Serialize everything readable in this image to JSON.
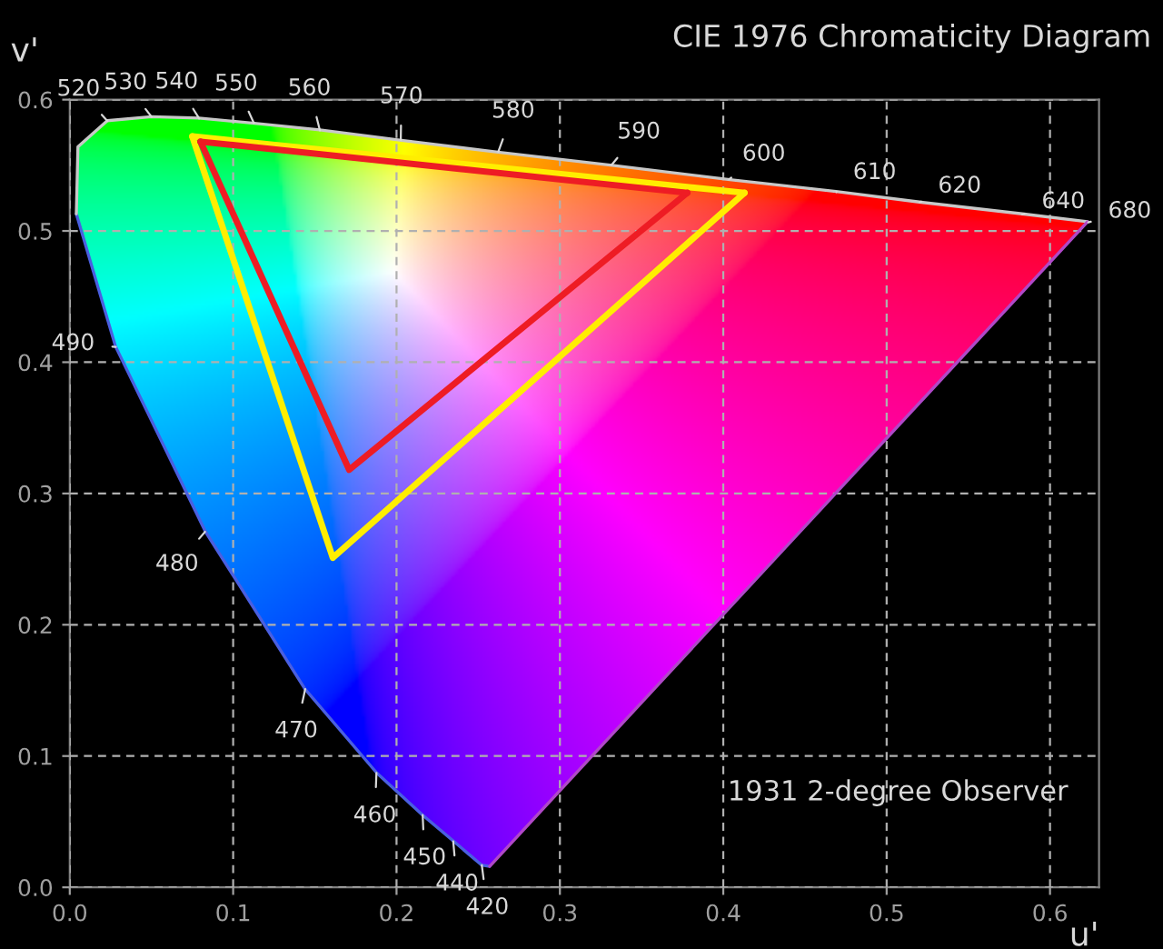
{
  "chart_data": {
    "type": "line",
    "title": "CIE 1976 Chromaticity Diagram",
    "xlabel": "u'",
    "ylabel": "v'",
    "xlim": [
      0,
      0.63
    ],
    "ylim": [
      0,
      0.6
    ],
    "xticks": [
      {
        "value": 0,
        "label": "0.0"
      },
      0.1,
      0.2,
      0.3,
      0.4,
      0.5,
      0.6
    ],
    "yticks": [
      {
        "value": 0,
        "label": "0.0"
      },
      0.1,
      0.2,
      0.3,
      0.4,
      0.5,
      0.6
    ],
    "grid": true,
    "legend": false,
    "line_style": "solid",
    "marker": "none",
    "series": [
      {
        "color": "#4a5fe0",
        "x": [
          0.004,
          0.028,
          0.083,
          0.144,
          0.188,
          0.216,
          0.235,
          0.252,
          0.257
        ],
        "values": [
          0.513,
          0.412,
          0.271,
          0.151,
          0.087,
          0.055,
          0.035,
          0.017,
          0.016
        ]
      },
      {
        "color": "#c8c8c8",
        "x": [
          0.004,
          0.005,
          0.023,
          0.05,
          0.079,
          0.113,
          0.153,
          0.203,
          0.262,
          0.332,
          0.404,
          0.469,
          0.52,
          0.583,
          0.623
        ],
        "values": [
          0.513,
          0.564,
          0.584,
          0.587,
          0.586,
          0.582,
          0.577,
          0.569,
          0.56,
          0.55,
          0.539,
          0.53,
          0.522,
          0.513,
          0.507
        ]
      },
      {
        "color": "#b048c8",
        "x": [
          0.257,
          0.623
        ],
        "values": [
          0.016,
          0.507
        ]
      },
      {
        "color": "#ffee00",
        "x": [
          0.075,
          0.161,
          0.413
        ],
        "values": [
          0.572,
          0.251,
          0.529
        ]
      },
      {
        "color": "#ffee00",
        "x": [
          0.075,
          0.413
        ],
        "values": [
          0.572,
          0.529
        ]
      },
      {
        "color": "#ee1c24",
        "x": [
          0.08,
          0.171,
          0.378
        ],
        "values": [
          0.568,
          0.318,
          0.529
        ]
      },
      {
        "color": "#ee1c24",
        "x": [
          0.08,
          0.378
        ],
        "values": [
          0.568,
          0.529
        ]
      }
    ],
    "annotations": [
      {
        "text": "420",
        "x": 0.2522,
        "y": 0.0169
      },
      {
        "text": "440",
        "x": 0.2347,
        "y": 0.035
      },
      {
        "text": "450",
        "x": 0.216,
        "y": 0.055
      },
      {
        "text": "460",
        "x": 0.1877,
        "y": 0.0871
      },
      {
        "text": "470",
        "x": 0.1441,
        "y": 0.151
      },
      {
        "text": "480",
        "x": 0.0828,
        "y": 0.2708
      },
      {
        "text": "490",
        "x": 0.0282,
        "y": 0.4117
      },
      {
        "text": "520",
        "x": 0.0231,
        "y": 0.5837
      },
      {
        "text": "530",
        "x": 0.0501,
        "y": 0.5868
      },
      {
        "text": "540",
        "x": 0.0792,
        "y": 0.5856
      },
      {
        "text": "550",
        "x": 0.1127,
        "y": 0.5821
      },
      {
        "text": "560",
        "x": 0.1531,
        "y": 0.5766
      },
      {
        "text": "570",
        "x": 0.2026,
        "y": 0.5694
      },
      {
        "text": "580",
        "x": 0.2623,
        "y": 0.5604
      },
      {
        "text": "590",
        "x": 0.3315,
        "y": 0.5501
      },
      {
        "text": "600",
        "x": 0.4035,
        "y": 0.5393
      },
      {
        "text": "610",
        "x": 0.4692,
        "y": 0.5296
      },
      {
        "text": "620",
        "x": 0.5203,
        "y": 0.5219
      },
      {
        "text": "640",
        "x": 0.583,
        "y": 0.5125
      },
      {
        "text": "680",
        "x": 0.6234,
        "y": 0.5065
      },
      "1931 2-degree Observer"
    ]
  }
}
